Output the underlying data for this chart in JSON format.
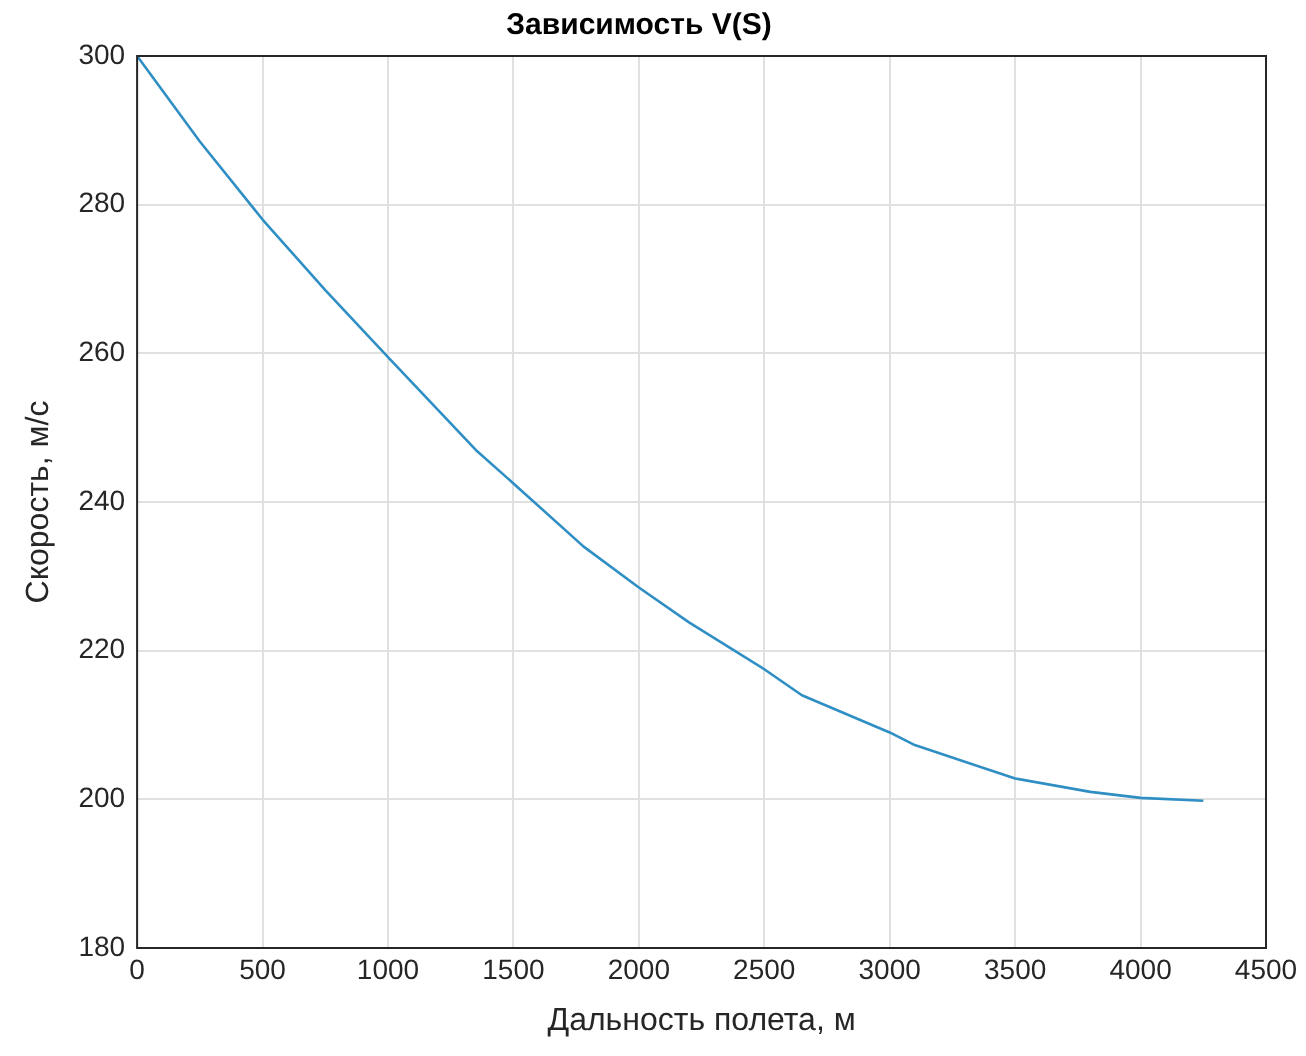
{
  "chart_data": {
    "type": "line",
    "title": "Зависимость V(S)",
    "xlabel": "Дальность полета, м",
    "ylabel": "Скорость, м/с",
    "x": [
      0,
      250,
      500,
      750,
      1000,
      1350,
      1500,
      1780,
      2000,
      2200,
      2500,
      2650,
      3000,
      3100,
      3500,
      3800,
      4000,
      4250
    ],
    "series": [
      {
        "color": "#2f8fc4",
        "values": [
          300,
          288.5,
          278,
          268.5,
          259.5,
          247,
          242.5,
          234,
          228.5,
          223.8,
          217.5,
          214,
          209,
          207.3,
          202.8,
          201,
          200.2,
          199.8
        ]
      }
    ],
    "xlim": [
      0,
      4500
    ],
    "xticks": [
      0,
      500,
      1000,
      1500,
      2000,
      2500,
      3000,
      3500,
      4000,
      4500
    ],
    "ylim": [
      180,
      300
    ],
    "yticks": [
      180,
      200,
      220,
      240,
      260,
      280,
      300
    ],
    "grid": true,
    "legend": false,
    "marker": "none",
    "line_style": "solid"
  }
}
